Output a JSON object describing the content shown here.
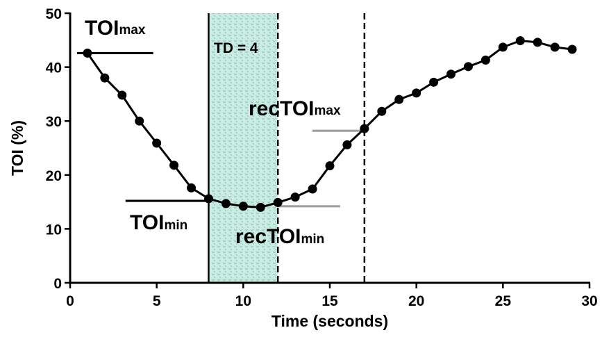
{
  "chart_data": {
    "type": "line",
    "xlabel": "Time (seconds)",
    "ylabel": "TOI  (%)",
    "xlim": [
      0,
      30
    ],
    "ylim": [
      0,
      50
    ],
    "xticks": [
      0,
      5,
      10,
      15,
      20,
      25,
      30
    ],
    "yticks": [
      0,
      10,
      20,
      30,
      40,
      50
    ],
    "grid": false,
    "series": [
      {
        "x": [
          1,
          2,
          3,
          4,
          5,
          6,
          7,
          8,
          9,
          10,
          11,
          12,
          13,
          14,
          15,
          16,
          17,
          18,
          19,
          20,
          21,
          22,
          23,
          24,
          25,
          26,
          27,
          28,
          29
        ],
        "y": [
          42.6,
          38.0,
          34.8,
          30.0,
          25.9,
          21.8,
          17.6,
          15.6,
          14.7,
          14.2,
          14.0,
          14.9,
          15.9,
          17.4,
          21.7,
          25.6,
          28.6,
          31.8,
          34.0,
          35.2,
          37.2,
          38.7,
          40.1,
          41.3,
          43.7,
          44.9,
          44.6,
          43.7,
          43.3
        ]
      }
    ],
    "shaded_region": {
      "x": [
        8,
        12
      ],
      "label": "TD = 4",
      "color": "#c8ece2"
    },
    "reference_lines": [
      {
        "type": "vertical",
        "x": 8,
        "style": "solid",
        "color": "#000000"
      },
      {
        "type": "vertical",
        "x": 12,
        "style": "dashed",
        "color": "#000000"
      },
      {
        "type": "vertical",
        "x": 17,
        "style": "dashed",
        "color": "#000000"
      },
      {
        "type": "horizontal",
        "y": 42.6,
        "x": [
          0.4,
          4.8
        ],
        "color": "#000000",
        "label": "TOImax"
      },
      {
        "type": "horizontal",
        "y": 15.2,
        "x": [
          3.2,
          8.0
        ],
        "color": "#000000",
        "label": "TOImin"
      },
      {
        "type": "horizontal",
        "y": 28.2,
        "x": [
          14.0,
          17.0
        ],
        "color": "#a0a0a0",
        "label": "recTOImax"
      },
      {
        "type": "horizontal",
        "y": 14.2,
        "x": [
          12.0,
          15.6
        ],
        "color": "#a0a0a0",
        "label": "recTOImin"
      }
    ],
    "annotations": [
      {
        "main": "TOI",
        "sub": "max"
      },
      {
        "main": "TOI",
        "sub": "min"
      },
      {
        "main": "recTOI",
        "sub": "max"
      },
      {
        "main": "recTOI",
        "sub": "min"
      },
      {
        "text": "TD = 4"
      }
    ]
  }
}
